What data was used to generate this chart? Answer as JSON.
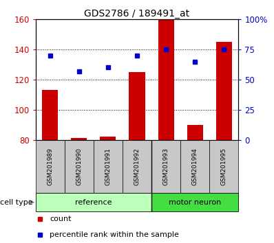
{
  "title": "GDS2786 / 189491_at",
  "samples": [
    "GSM201989",
    "GSM201990",
    "GSM201991",
    "GSM201992",
    "GSM201993",
    "GSM201994",
    "GSM201995"
  ],
  "bar_values": [
    113,
    81,
    82,
    125,
    160,
    90,
    145
  ],
  "dot_values": [
    70,
    57,
    60,
    70,
    75,
    65,
    75
  ],
  "bar_color": "#cc0000",
  "dot_color": "#0000cc",
  "ylim_left": [
    80,
    160
  ],
  "ylim_right": [
    0,
    100
  ],
  "yticks_left": [
    80,
    100,
    120,
    140,
    160
  ],
  "ytick_labels_left": [
    "80",
    "100",
    "120",
    "140",
    "160"
  ],
  "yticks_right": [
    0,
    25,
    50,
    75,
    100
  ],
  "ytick_labels_right": [
    "0",
    "25",
    "50",
    "75",
    "100%"
  ],
  "groups": [
    {
      "label": "reference",
      "start": 0,
      "end": 3,
      "color": "#bbffbb"
    },
    {
      "label": "motor neuron",
      "start": 4,
      "end": 6,
      "color": "#44dd44"
    }
  ],
  "group_row_label": "cell type",
  "legend_bar_label": "count",
  "legend_dot_label": "percentile rank within the sample",
  "bar_width": 0.55,
  "sample_box_color": "#c8c8c8",
  "grid_linestyle": ":"
}
